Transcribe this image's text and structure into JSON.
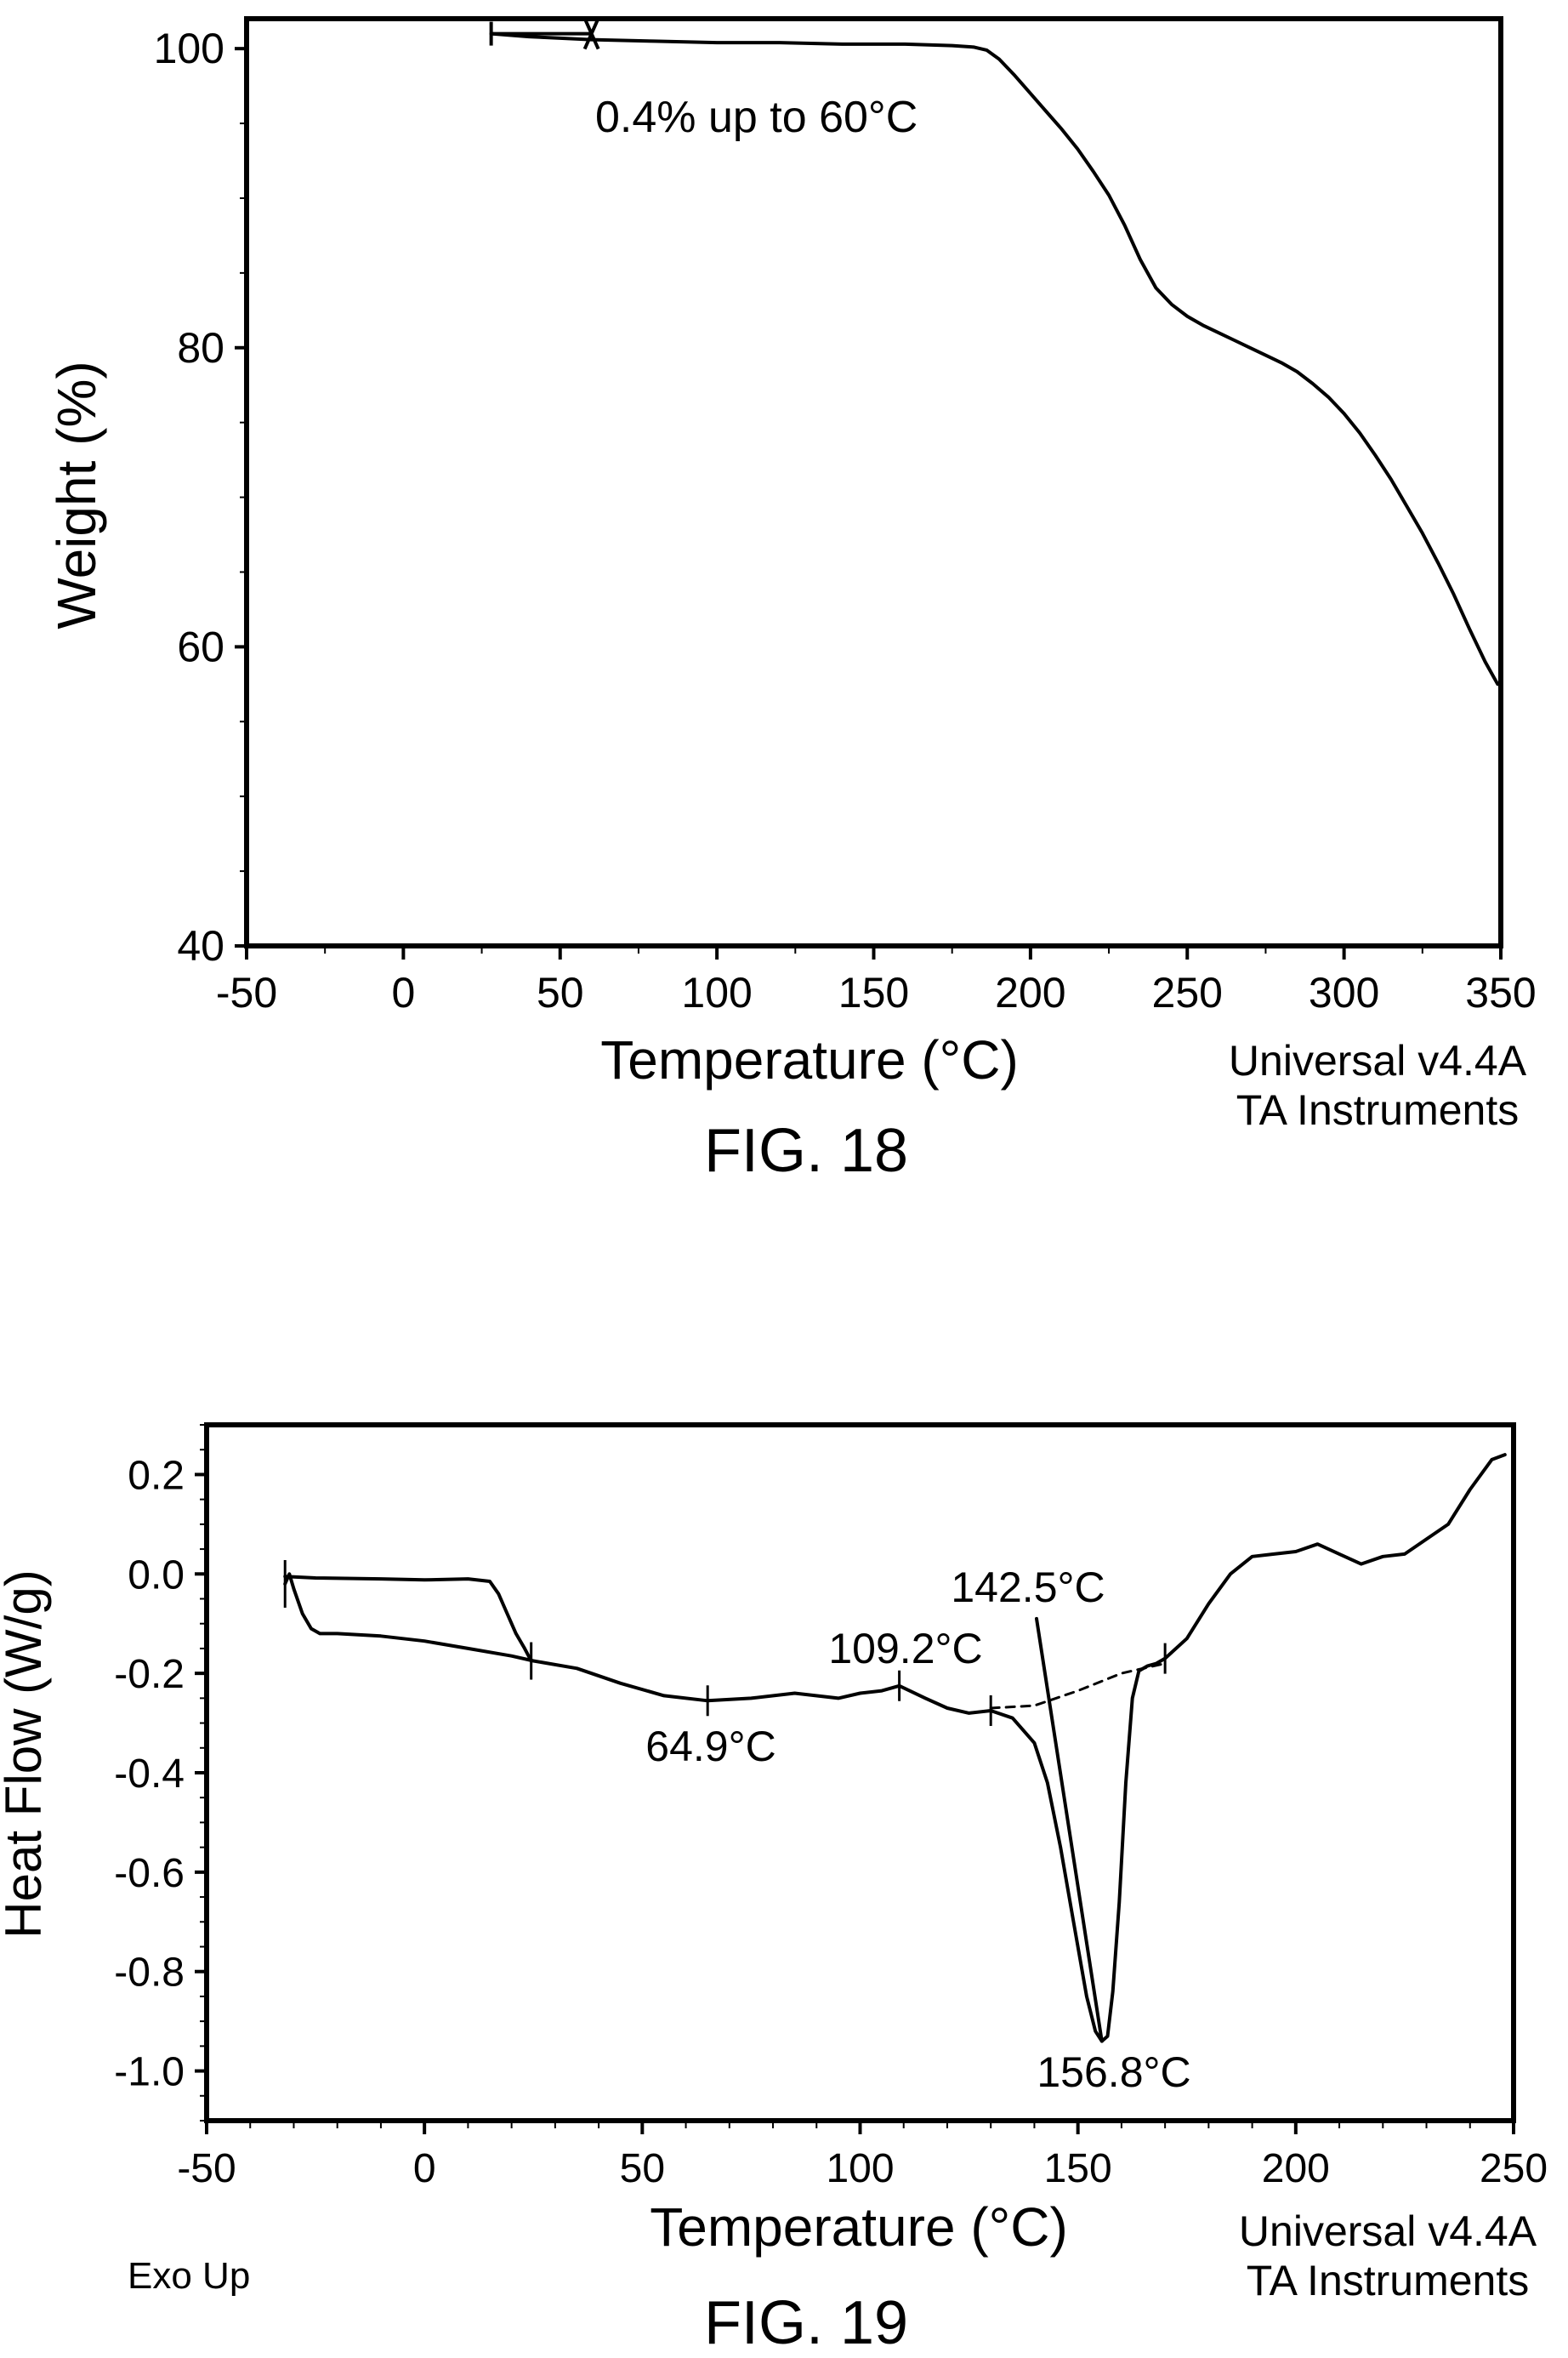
{
  "chart_data": [
    {
      "type": "line",
      "figure_label": "FIG. 18",
      "xlabel": "Temperature (°C)",
      "ylabel": "Weight (%)",
      "xlim": [
        -50,
        350
      ],
      "ylim": [
        40,
        102
      ],
      "x_ticks": [
        -50,
        0,
        50,
        100,
        150,
        200,
        250,
        300,
        350
      ],
      "y_ticks": [
        40,
        60,
        80,
        100
      ],
      "grid": false,
      "software_note": [
        "Universal v4.4A",
        "TA Instruments"
      ],
      "annotations": [
        {
          "text": "0.4% up to 60°C",
          "x": 61,
          "y": 98.8
        }
      ],
      "series": [
        {
          "x": [
            28,
            40,
            60,
            80,
            100,
            120,
            140,
            160,
            175,
            182,
            186,
            190,
            195,
            200,
            205,
            210,
            215,
            220,
            225,
            230,
            235,
            240,
            245,
            250,
            255,
            260,
            265,
            270,
            275,
            280,
            285,
            290,
            295,
            300,
            305,
            310,
            315,
            320,
            325,
            330,
            335,
            340,
            345,
            349
          ],
          "y": [
            101.0,
            100.8,
            100.6,
            100.5,
            100.4,
            100.4,
            100.3,
            100.3,
            100.2,
            100.1,
            99.9,
            99.3,
            98.2,
            97.0,
            95.8,
            94.6,
            93.3,
            91.8,
            90.2,
            88.2,
            85.9,
            84.0,
            82.9,
            82.1,
            81.5,
            81.0,
            80.5,
            80.0,
            79.5,
            79.0,
            78.4,
            77.6,
            76.7,
            75.6,
            74.3,
            72.8,
            71.2,
            69.4,
            67.6,
            65.6,
            63.5,
            61.2,
            59.0,
            57.5
          ]
        }
      ]
    },
    {
      "type": "line",
      "figure_label": "FIG. 19",
      "xlabel": "Temperature (°C)",
      "ylabel": "Heat Flow (W/g)",
      "xlim": [
        -50,
        250
      ],
      "ylim": [
        -1.1,
        0.3
      ],
      "x_ticks": [
        -50,
        0,
        50,
        100,
        150,
        200,
        250
      ],
      "y_ticks": [
        0.2,
        0.0,
        -0.2,
        -0.4,
        -0.6,
        -0.8,
        -1.0
      ],
      "y_tick_labels": [
        "0.2",
        "0.0",
        "-0.2",
        "-0.4",
        "-0.6",
        "-0.8",
        "-1.0"
      ],
      "grid": false,
      "corner_note": "Exo Up",
      "software_note": [
        "Universal v4.4A",
        "TA Instruments"
      ],
      "annotations": [
        {
          "text": "64.9°C",
          "x": 65,
          "y": -0.36
        },
        {
          "text": "109.2°C",
          "x": 109,
          "y": -0.16
        },
        {
          "text": "142.5°C",
          "x": 142.5,
          "y": -0.06
        },
        {
          "text": "156.8°C",
          "x": 157,
          "y": -1.03
        }
      ],
      "series": [
        {
          "x": [
            -32,
            -31,
            -30,
            -28,
            -26,
            -24,
            -20,
            -10,
            0,
            10,
            20,
            25,
            35,
            45,
            55,
            65,
            75,
            85,
            95,
            100,
            105,
            109,
            115,
            120,
            125,
            130,
            135,
            140,
            143,
            146,
            149,
            152,
            154,
            155.5,
            156.8,
            158,
            159.5,
            161,
            162.5,
            164,
            166,
            168,
            170,
            175,
            180,
            185,
            190,
            195,
            200,
            205,
            210,
            215,
            220,
            225,
            230,
            235,
            240,
            245,
            248
          ],
          "y": [
            -0.02,
            0.0,
            -0.03,
            -0.08,
            -0.11,
            -0.12,
            -0.12,
            -0.125,
            -0.135,
            -0.15,
            -0.165,
            -0.175,
            -0.19,
            -0.22,
            -0.245,
            -0.255,
            -0.25,
            -0.24,
            -0.25,
            -0.24,
            -0.235,
            -0.225,
            -0.25,
            -0.27,
            -0.28,
            -0.275,
            -0.29,
            -0.34,
            -0.42,
            -0.55,
            -0.7,
            -0.85,
            -0.92,
            -0.94,
            -0.93,
            -0.84,
            -0.66,
            -0.42,
            -0.25,
            -0.195,
            -0.185,
            -0.18,
            -0.17,
            -0.13,
            -0.06,
            0.0,
            0.035,
            0.04,
            0.045,
            0.06,
            0.04,
            0.02,
            0.035,
            0.04,
            0.07,
            0.1,
            0.17,
            0.23,
            0.24
          ]
        },
        {
          "x": [
            -32,
            -25,
            -10,
            0,
            10,
            15,
            17,
            19,
            21,
            23,
            24.5
          ],
          "y": [
            -0.005,
            -0.008,
            -0.01,
            -0.012,
            -0.01,
            -0.015,
            -0.04,
            -0.08,
            -0.12,
            -0.15,
            -0.175
          ]
        },
        {
          "style": "dashed",
          "x": [
            130,
            140,
            150,
            160,
            170
          ],
          "y": [
            -0.27,
            -0.265,
            -0.235,
            -0.2,
            -0.18
          ]
        },
        {
          "x": [
            140.5,
            155.5
          ],
          "y": [
            -0.09,
            -0.94
          ]
        }
      ]
    }
  ]
}
